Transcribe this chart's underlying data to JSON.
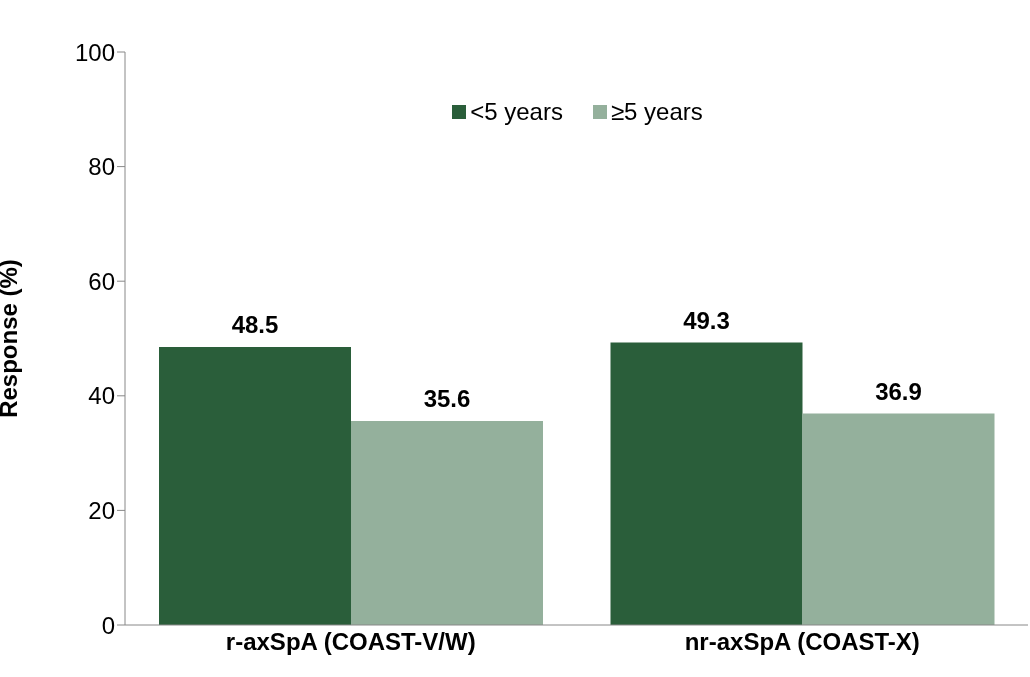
{
  "chart_data": {
    "type": "bar",
    "ylabel": "Response (%)",
    "categories": [
      "r-axSpA (COAST-V/W)",
      "nr-axSpA (COAST-X)"
    ],
    "series": [
      {
        "name": "<5 years",
        "color": "#2a5e3a",
        "values": [
          48.5,
          49.3
        ]
      },
      {
        "name": "≥5 years",
        "color": "#94b09c",
        "values": [
          35.6,
          36.9
        ]
      }
    ],
    "ylim": [
      0,
      100
    ],
    "yticks": [
      0,
      20,
      40,
      60,
      80,
      100
    ],
    "grid": false,
    "legend": "top",
    "data_labels": true
  }
}
